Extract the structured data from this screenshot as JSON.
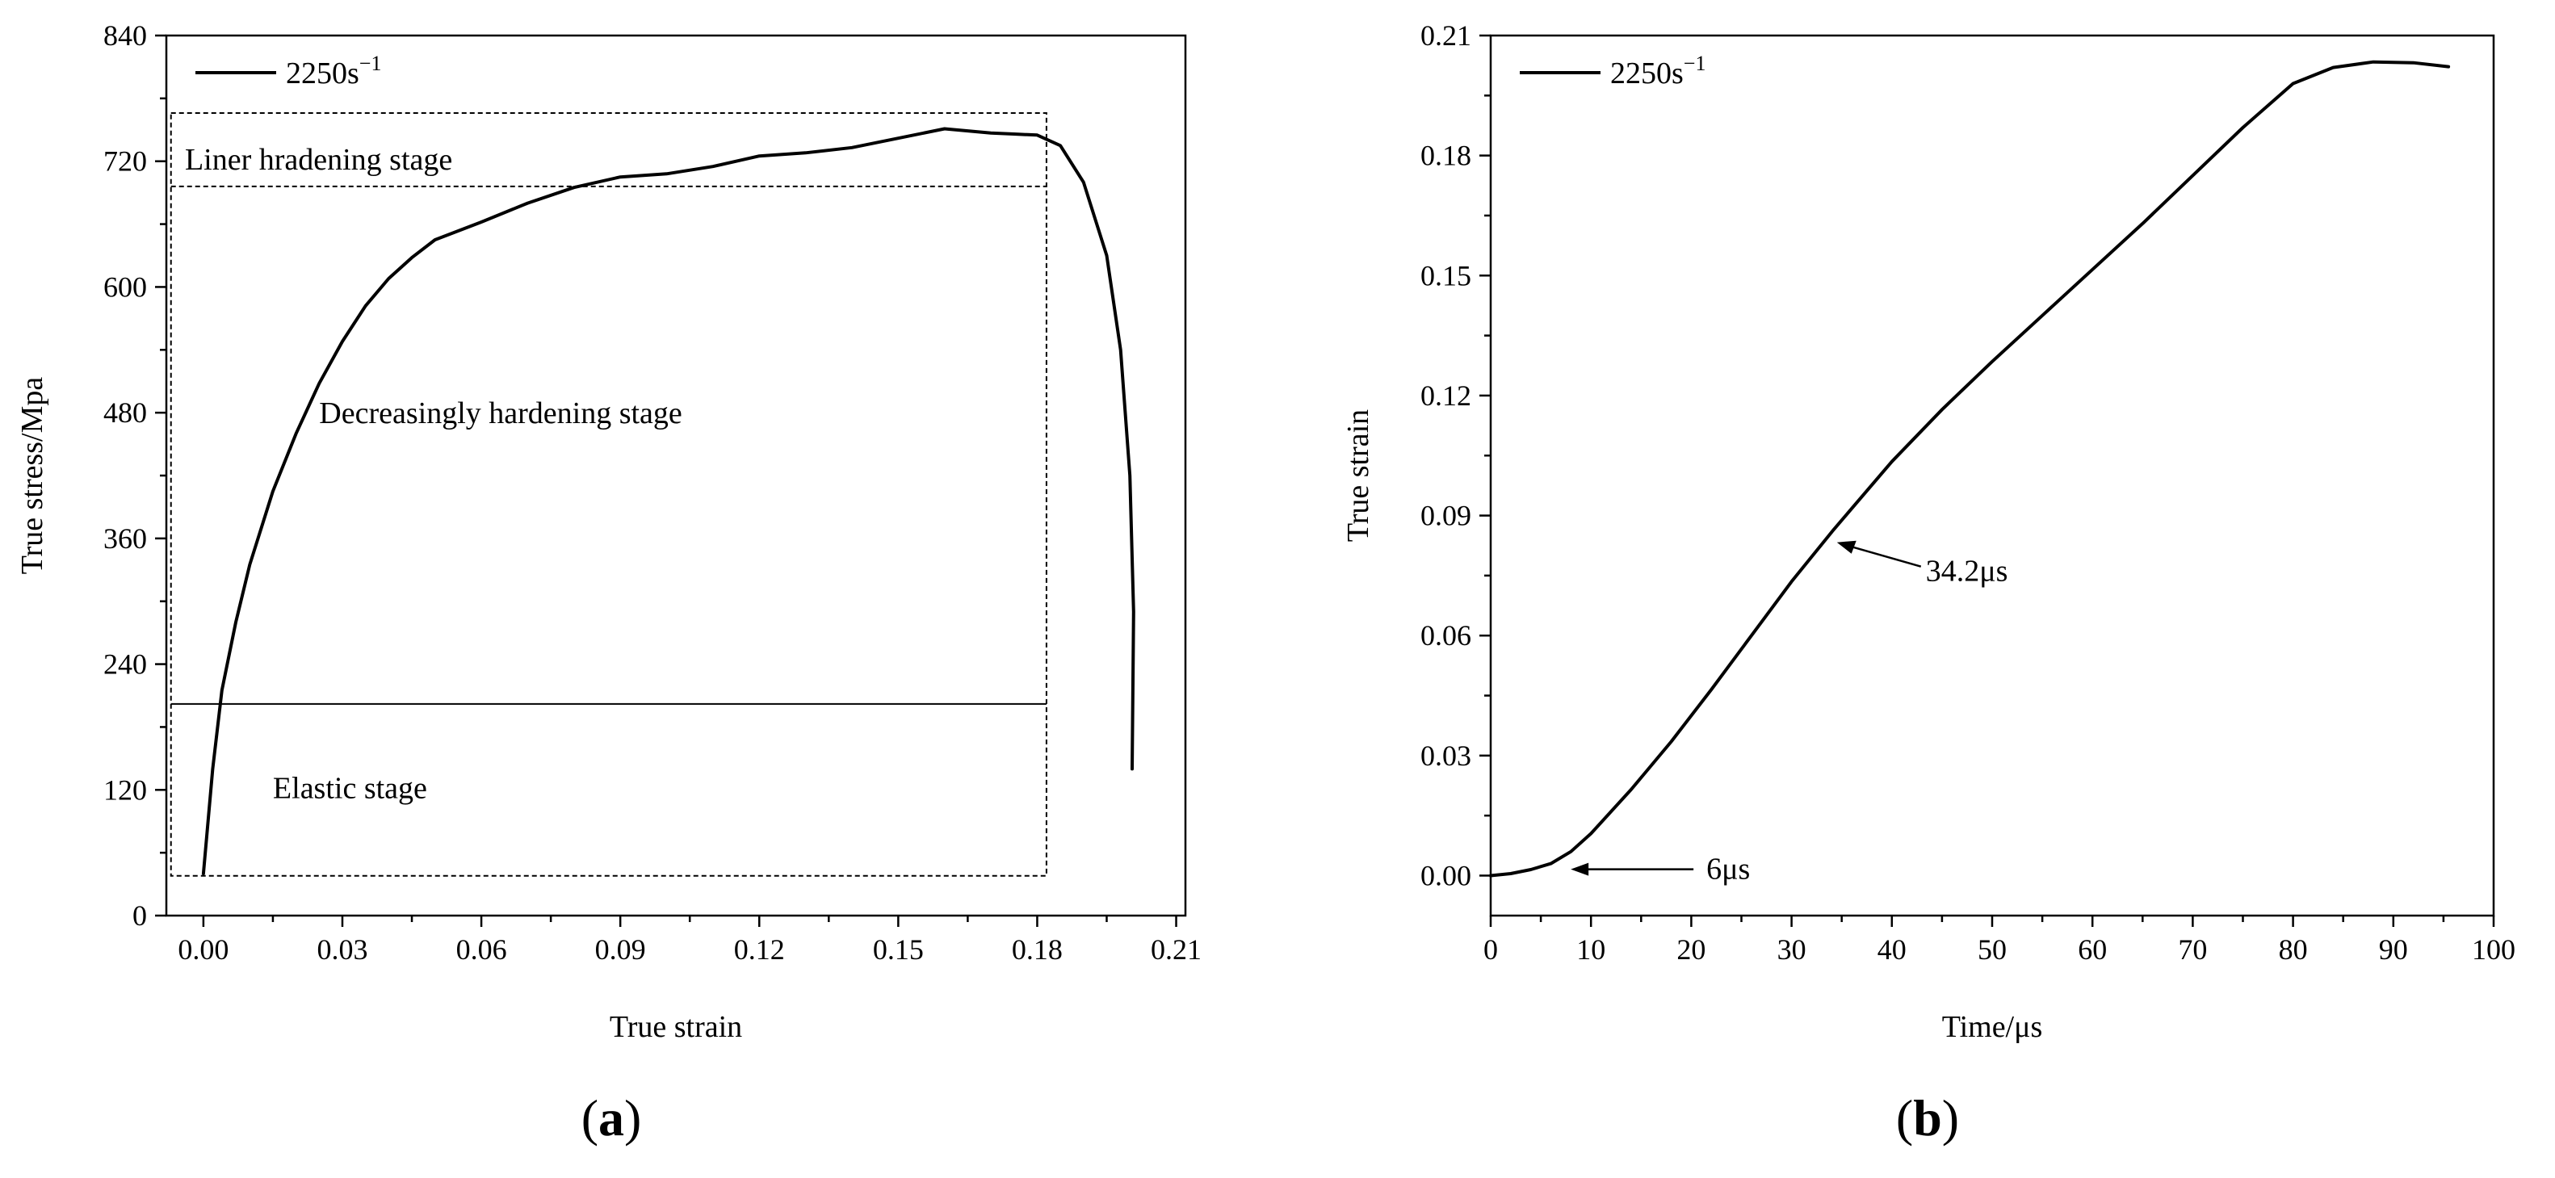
{
  "panels": [
    {
      "label": "a"
    },
    {
      "label": "b"
    }
  ],
  "chart_data": [
    {
      "type": "line",
      "panel": "a",
      "xlabel": "True strain",
      "ylabel": "True stress/Mpa",
      "xlim": [
        -0.008,
        0.212
      ],
      "ylim": [
        0,
        840
      ],
      "xticks": [
        0.0,
        0.03,
        0.06,
        0.09,
        0.12,
        0.15,
        0.18,
        0.21
      ],
      "xtick_labels": [
        "0.00",
        "0.03",
        "0.06",
        "0.09",
        "0.12",
        "0.15",
        "0.18",
        "0.21"
      ],
      "yticks": [
        0,
        120,
        240,
        360,
        480,
        600,
        720,
        840
      ],
      "ytick_labels": [
        "0",
        "120",
        "240",
        "360",
        "480",
        "600",
        "720",
        "840"
      ],
      "legend": {
        "position": "top-left",
        "base": "2250s",
        "sup": "−1"
      },
      "series": [
        {
          "name": "2250s−1",
          "color": "#000000",
          "points": [
            [
              0.0,
              40
            ],
            [
              0.002,
              140
            ],
            [
              0.004,
              215
            ],
            [
              0.007,
              280
            ],
            [
              0.01,
              335
            ],
            [
              0.015,
              405
            ],
            [
              0.02,
              460
            ],
            [
              0.025,
              508
            ],
            [
              0.03,
              548
            ],
            [
              0.035,
              582
            ],
            [
              0.04,
              608
            ],
            [
              0.045,
              628
            ],
            [
              0.05,
              645
            ],
            [
              0.06,
              662
            ],
            [
              0.07,
              680
            ],
            [
              0.08,
              695
            ],
            [
              0.09,
              705
            ],
            [
              0.1,
              708
            ],
            [
              0.11,
              715
            ],
            [
              0.12,
              725
            ],
            [
              0.13,
              728
            ],
            [
              0.14,
              733
            ],
            [
              0.15,
              742
            ],
            [
              0.16,
              751
            ],
            [
              0.165,
              749
            ],
            [
              0.17,
              747
            ],
            [
              0.175,
              746
            ],
            [
              0.18,
              745
            ],
            [
              0.185,
              735
            ],
            [
              0.19,
              700
            ],
            [
              0.195,
              630
            ],
            [
              0.198,
              540
            ],
            [
              0.2,
              420
            ],
            [
              0.2008,
              290
            ],
            [
              0.2005,
              140
            ]
          ]
        }
      ],
      "regions": [
        {
          "label": "Liner hradening stage",
          "y_range": [
            696,
            766
          ]
        },
        {
          "label": "Decreasingly hardening stage",
          "y_range": [
            202,
            696
          ]
        },
        {
          "label": "Elastic stage",
          "y_range": [
            38,
            202
          ]
        }
      ],
      "regions_x_range": [
        -0.007,
        0.182
      ]
    },
    {
      "type": "line",
      "panel": "b",
      "xlabel": "Time/μs",
      "ylabel": "True strain",
      "xlim": [
        0,
        100
      ],
      "ylim": [
        -0.01,
        0.21
      ],
      "xticks": [
        0,
        10,
        20,
        30,
        40,
        50,
        60,
        70,
        80,
        90,
        100
      ],
      "xtick_labels": [
        "0",
        "10",
        "20",
        "30",
        "40",
        "50",
        "60",
        "70",
        "80",
        "90",
        "100"
      ],
      "yticks": [
        0.0,
        0.03,
        0.06,
        0.09,
        0.12,
        0.15,
        0.18,
        0.21
      ],
      "ytick_labels": [
        "0.00",
        "0.03",
        "0.06",
        "0.09",
        "0.12",
        "0.15",
        "0.18",
        "0.21"
      ],
      "legend": {
        "position": "top-left",
        "base": "2250s",
        "sup": "−1"
      },
      "series": [
        {
          "name": "2250s−1",
          "color": "#000000",
          "points": [
            [
              0,
              0.0
            ],
            [
              2,
              0.0005
            ],
            [
              4,
              0.0015
            ],
            [
              6,
              0.003
            ],
            [
              8,
              0.006
            ],
            [
              10,
              0.0105
            ],
            [
              14,
              0.0215
            ],
            [
              18,
              0.0335
            ],
            [
              22,
              0.0465
            ],
            [
              26,
              0.06
            ],
            [
              30,
              0.0735
            ],
            [
              34.2,
              0.0865
            ],
            [
              40,
              0.1035
            ],
            [
              45,
              0.1165
            ],
            [
              50,
              0.1285
            ],
            [
              55,
              0.14
            ],
            [
              60,
              0.1515
            ],
            [
              65,
              0.163
            ],
            [
              70,
              0.175
            ],
            [
              75,
              0.187
            ],
            [
              80,
              0.198
            ],
            [
              84,
              0.202
            ],
            [
              88,
              0.2034
            ],
            [
              92,
              0.2032
            ],
            [
              95.5,
              0.2022
            ]
          ]
        }
      ],
      "annotations": [
        {
          "text": "34.2μs",
          "x": 34.2,
          "y": 0.0825
        },
        {
          "text": "6μs",
          "x": 7.5,
          "y": 0.004
        }
      ]
    }
  ]
}
